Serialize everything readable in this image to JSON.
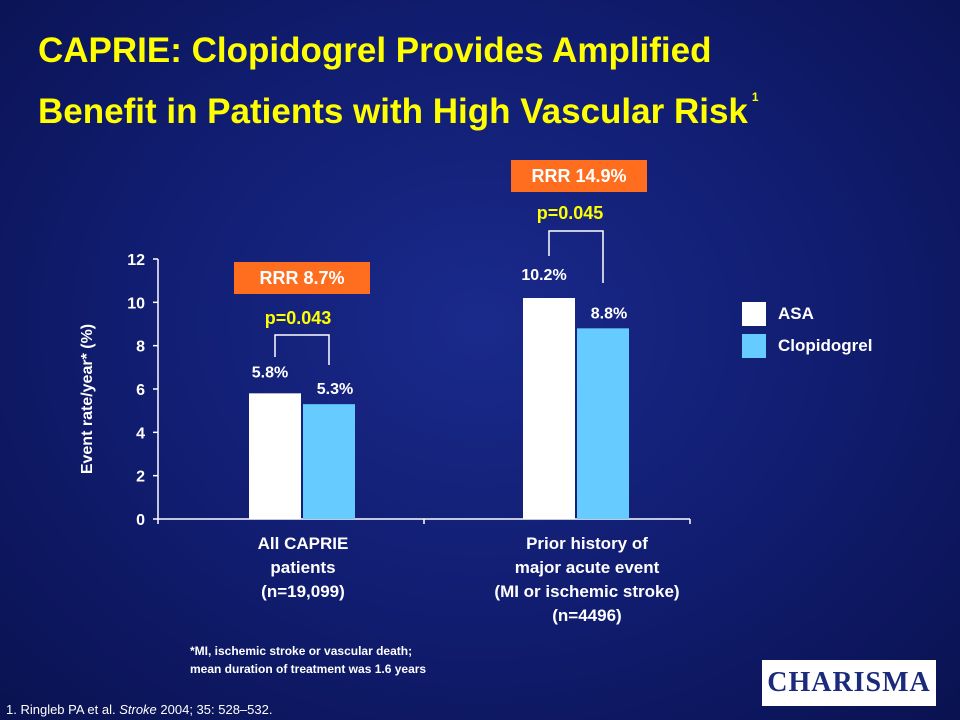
{
  "title": {
    "line1": "CAPRIE: Clopidogrel Provides Amplified",
    "line2": "Benefit in Patients with High Vascular Risk",
    "superscript": "1"
  },
  "chart_data": {
    "type": "bar",
    "ylabel": "Event rate/year* (%)",
    "ylim": [
      0,
      12
    ],
    "yticks": [
      0,
      2,
      4,
      6,
      8,
      10,
      12
    ],
    "categories": [
      [
        "All CAPRIE",
        "patients",
        "(n=19,099)"
      ],
      [
        "Prior history of",
        "major acute event",
        "(MI or ischemic stroke)",
        "(n=4496)"
      ]
    ],
    "series": [
      {
        "name": "ASA",
        "color": "#ffffff",
        "values": [
          5.8,
          10.2
        ],
        "labels": [
          "5.8%",
          "10.2%"
        ]
      },
      {
        "name": "Clopidogrel",
        "color": "#66ccff",
        "values": [
          5.3,
          8.8
        ],
        "labels": [
          "5.3%",
          "8.8%"
        ]
      }
    ],
    "annotations": [
      {
        "rrr": "RRR 8.7%",
        "p": "p=0.043"
      },
      {
        "rrr": "RRR 14.9%",
        "p": "p=0.045"
      }
    ],
    "legend": "right"
  },
  "footnote": {
    "line1": "*MI, ischemic stroke or vascular death;",
    "line2": "mean duration of treatment was 1.6 years"
  },
  "reference": {
    "prefix": "1.  Ringleb PA et al. ",
    "journal": "Stroke",
    "suffix": " 2004; 35: 528–532."
  },
  "logo": {
    "text": "CHARISMA"
  },
  "colors": {
    "title": "#ffff00",
    "rrr_box": "#ff6d1f",
    "pvalue": "#ffff00"
  }
}
